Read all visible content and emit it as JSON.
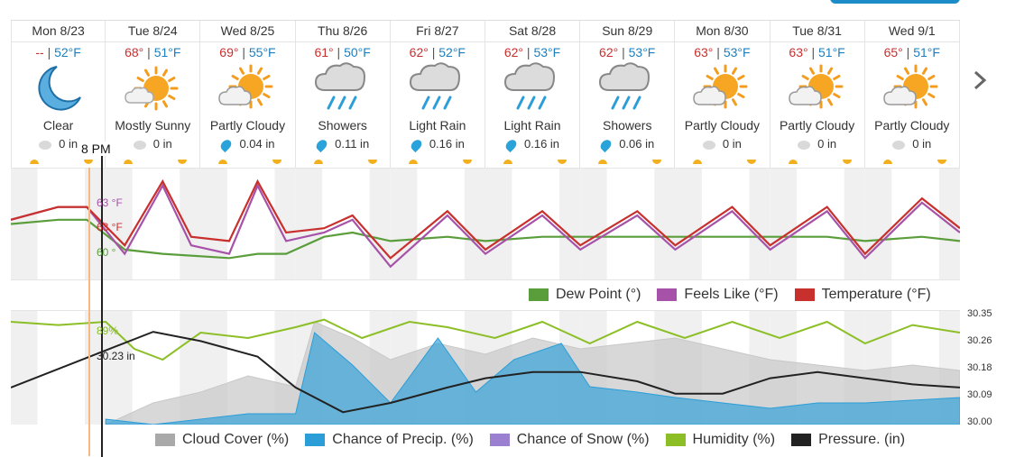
{
  "days": [
    {
      "date": "Mon 8/23",
      "hi": "--",
      "lo": "52°F",
      "icon": "moon-icon",
      "condition": "Clear",
      "precip": "0 in",
      "drop": "gray"
    },
    {
      "date": "Tue 8/24",
      "hi": "68°",
      "lo": "51°F",
      "icon": "sun-icon",
      "condition": "Mostly Sunny",
      "precip": "0 in",
      "drop": "gray"
    },
    {
      "date": "Wed 8/25",
      "hi": "69°",
      "lo": "55°F",
      "icon": "sun-cloud-icon",
      "condition": "Partly Cloudy",
      "precip": "0.04 in",
      "drop": "blue"
    },
    {
      "date": "Thu 8/26",
      "hi": "61°",
      "lo": "50°F",
      "icon": "rain-cloud-icon",
      "condition": "Showers",
      "precip": "0.11 in",
      "drop": "blue"
    },
    {
      "date": "Fri 8/27",
      "hi": "62°",
      "lo": "52°F",
      "icon": "rain-cloud-icon",
      "condition": "Light Rain",
      "precip": "0.16 in",
      "drop": "blue"
    },
    {
      "date": "Sat 8/28",
      "hi": "62°",
      "lo": "53°F",
      "icon": "rain-cloud-icon",
      "condition": "Light Rain",
      "precip": "0.16 in",
      "drop": "blue"
    },
    {
      "date": "Sun 8/29",
      "hi": "62°",
      "lo": "53°F",
      "icon": "rain-cloud-icon",
      "condition": "Showers",
      "precip": "0.06 in",
      "drop": "blue"
    },
    {
      "date": "Mon 8/30",
      "hi": "63°",
      "lo": "53°F",
      "icon": "sun-cloud-icon",
      "condition": "Partly Cloudy",
      "precip": "0 in",
      "drop": "gray"
    },
    {
      "date": "Tue 8/31",
      "hi": "63°",
      "lo": "51°F",
      "icon": "sun-cloud-icon",
      "condition": "Partly Cloudy",
      "precip": "0 in",
      "drop": "gray"
    },
    {
      "date": "Wed 9/1",
      "hi": "65°",
      "lo": "51°F",
      "icon": "sun-cloud-icon",
      "condition": "Partly Cloudy",
      "precip": "0 in",
      "drop": "gray"
    }
  ],
  "cursor": {
    "time": "8 PM",
    "feels_like": "63 °F",
    "temperature": "63 °F",
    "dew_point": "60 °",
    "humidity": "89%",
    "pressure": "30.23 in"
  },
  "legend_top": [
    {
      "label": "Dew Point (°)",
      "color": "#5a9e3c"
    },
    {
      "label": "Feels Like (°F)",
      "color": "#a652a8"
    },
    {
      "label": "Temperature (°F)",
      "color": "#c8302e"
    }
  ],
  "legend_bottom": [
    {
      "label": "Cloud Cover (%)",
      "color": "#a9a9a9"
    },
    {
      "label": "Chance of Precip. (%)",
      "color": "#2b9ed8"
    },
    {
      "label": "Chance of Snow (%)",
      "color": "#9b7fd0"
    },
    {
      "label": "Humidity (%)",
      "color": "#8cbf26"
    },
    {
      "label": "Pressure. (in)",
      "color": "#222222"
    }
  ],
  "pressure_axis": [
    "30.35",
    "30.26",
    "30.18",
    "30.09",
    "30.00"
  ],
  "chart_data": [
    {
      "type": "line",
      "title": "",
      "x": [
        "Mon 8/23",
        "Tue 8/24",
        "Wed 8/25",
        "Thu 8/26",
        "Fri 8/27",
        "Sat 8/28",
        "Sun 8/29",
        "Mon 8/30",
        "Tue 8/31",
        "Wed 9/1"
      ],
      "series": [
        {
          "name": "Temperature (°F)",
          "color": "#c8302e",
          "values": [
            [
              0,
              60
            ],
            [
              0.5,
              63
            ],
            [
              0.8,
              63
            ],
            [
              1.2,
              54
            ],
            [
              1.6,
              69
            ],
            [
              1.9,
              56
            ],
            [
              2.3,
              55
            ],
            [
              2.6,
              69
            ],
            [
              2.9,
              57
            ],
            [
              3.3,
              58
            ],
            [
              3.6,
              61
            ],
            [
              4.0,
              51
            ],
            [
              4.6,
              62
            ],
            [
              5.0,
              53
            ],
            [
              5.6,
              62
            ],
            [
              6.0,
              54
            ],
            [
              6.6,
              62
            ],
            [
              7.0,
              54
            ],
            [
              7.6,
              63
            ],
            [
              8.0,
              54
            ],
            [
              8.6,
              63
            ],
            [
              9.0,
              52
            ],
            [
              9.6,
              65
            ],
            [
              10,
              58
            ]
          ]
        },
        {
          "name": "Feels Like (°F)",
          "color": "#a652a8",
          "values": [
            [
              0,
              60
            ],
            [
              0.5,
              63
            ],
            [
              0.8,
              63
            ],
            [
              1.2,
              52
            ],
            [
              1.6,
              68
            ],
            [
              1.9,
              54
            ],
            [
              2.3,
              52
            ],
            [
              2.6,
              68
            ],
            [
              2.9,
              55
            ],
            [
              3.3,
              57
            ],
            [
              3.6,
              60
            ],
            [
              4.0,
              49
            ],
            [
              4.6,
              61
            ],
            [
              5.0,
              52
            ],
            [
              5.6,
              61
            ],
            [
              6.0,
              53
            ],
            [
              6.6,
              61
            ],
            [
              7.0,
              53
            ],
            [
              7.6,
              62
            ],
            [
              8.0,
              53
            ],
            [
              8.6,
              62
            ],
            [
              9.0,
              51
            ],
            [
              9.6,
              64
            ],
            [
              10,
              57
            ]
          ]
        },
        {
          "name": "Dew Point (°)",
          "color": "#5a9e3c",
          "values": [
            [
              0,
              59
            ],
            [
              0.5,
              60
            ],
            [
              0.8,
              60
            ],
            [
              1.2,
              53
            ],
            [
              1.6,
              52
            ],
            [
              2.3,
              51
            ],
            [
              2.6,
              52
            ],
            [
              2.9,
              52
            ],
            [
              3.3,
              56
            ],
            [
              3.6,
              57
            ],
            [
              4.0,
              55
            ],
            [
              4.6,
              56
            ],
            [
              5.0,
              55
            ],
            [
              5.6,
              56
            ],
            [
              6.0,
              56
            ],
            [
              6.6,
              56
            ],
            [
              7.0,
              56
            ],
            [
              7.6,
              56
            ],
            [
              8.0,
              56
            ],
            [
              8.6,
              56
            ],
            [
              9.0,
              55
            ],
            [
              9.6,
              56
            ],
            [
              10,
              55
            ]
          ]
        }
      ]
    },
    {
      "type": "area",
      "title": "",
      "x": [
        "Mon 8/23",
        "Tue 8/24",
        "Wed 8/25",
        "Thu 8/26",
        "Fri 8/27",
        "Sat 8/28",
        "Sun 8/29",
        "Mon 8/30",
        "Tue 8/31",
        "Wed 9/1"
      ],
      "ylim_pressure": [
        30.0,
        30.35
      ],
      "series": [
        {
          "name": "Cloud Cover (%)",
          "color": "#c8c8c8",
          "values": [
            [
              1,
              0
            ],
            [
              1.5,
              20
            ],
            [
              2,
              30
            ],
            [
              2.5,
              45
            ],
            [
              3,
              35
            ],
            [
              3.2,
              95
            ],
            [
              3.6,
              80
            ],
            [
              4,
              60
            ],
            [
              4.5,
              75
            ],
            [
              5,
              65
            ],
            [
              5.5,
              80
            ],
            [
              6,
              70
            ],
            [
              6.5,
              75
            ],
            [
              7,
              80
            ],
            [
              7.5,
              70
            ],
            [
              8,
              60
            ],
            [
              8.5,
              55
            ],
            [
              9,
              50
            ],
            [
              9.5,
              55
            ],
            [
              10,
              50
            ]
          ]
        },
        {
          "name": "Chance of Precip. (%)",
          "color": "#2b9ed8",
          "values": [
            [
              1,
              5
            ],
            [
              1.5,
              0
            ],
            [
              2,
              5
            ],
            [
              2.5,
              10
            ],
            [
              3,
              10
            ],
            [
              3.2,
              85
            ],
            [
              3.6,
              55
            ],
            [
              4,
              20
            ],
            [
              4.5,
              80
            ],
            [
              4.9,
              30
            ],
            [
              5.3,
              60
            ],
            [
              5.8,
              75
            ],
            [
              6.1,
              35
            ],
            [
              6.6,
              30
            ],
            [
              7,
              25
            ],
            [
              7.5,
              20
            ],
            [
              8,
              15
            ],
            [
              8.5,
              20
            ],
            [
              9,
              20
            ],
            [
              10,
              25
            ]
          ]
        },
        {
          "name": "Humidity (%)",
          "color": "#8cbf26",
          "values": [
            [
              0,
              95
            ],
            [
              0.5,
              92
            ],
            [
              1,
              95
            ],
            [
              1.3,
              70
            ],
            [
              1.6,
              60
            ],
            [
              2,
              85
            ],
            [
              2.5,
              80
            ],
            [
              3,
              90
            ],
            [
              3.3,
              97
            ],
            [
              3.7,
              80
            ],
            [
              4.2,
              95
            ],
            [
              4.6,
              90
            ],
            [
              5.1,
              80
            ],
            [
              5.6,
              95
            ],
            [
              6.1,
              75
            ],
            [
              6.6,
              95
            ],
            [
              7.1,
              80
            ],
            [
              7.6,
              95
            ],
            [
              8.1,
              80
            ],
            [
              8.6,
              95
            ],
            [
              9.0,
              75
            ],
            [
              9.5,
              92
            ],
            [
              10,
              85
            ]
          ]
        },
        {
          "name": "Pressure. (in)",
          "color": "#222222",
          "values": [
            [
              0,
              30.12
            ],
            [
              0.5,
              30.18
            ],
            [
              1,
              30.24
            ],
            [
              1.5,
              30.3
            ],
            [
              2,
              30.27
            ],
            [
              2.6,
              30.22
            ],
            [
              3.0,
              30.12
            ],
            [
              3.5,
              30.04
            ],
            [
              4.0,
              30.07
            ],
            [
              4.6,
              30.12
            ],
            [
              5.0,
              30.15
            ],
            [
              5.5,
              30.17
            ],
            [
              6.0,
              30.17
            ],
            [
              6.6,
              30.14
            ],
            [
              7.0,
              30.1
            ],
            [
              7.5,
              30.1
            ],
            [
              8.0,
              30.15
            ],
            [
              8.5,
              30.17
            ],
            [
              9.0,
              30.15
            ],
            [
              9.5,
              30.13
            ],
            [
              10,
              30.12
            ]
          ]
        }
      ]
    }
  ]
}
